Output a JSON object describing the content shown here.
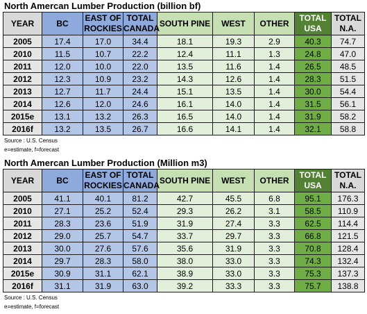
{
  "tables": [
    {
      "title": "North Amercan Lumber Production (billion bf)",
      "headers": {
        "year": "YEAR",
        "bc": "BC",
        "east_rockies_l1": "EAST OF",
        "east_rockies_l2": "ROCKIES",
        "total_canada_l1": "TOTAL",
        "total_canada_l2": "CANADA",
        "south_pine": "SOUTH PINE",
        "west": "WEST",
        "other": "OTHER",
        "total_usa_l1": "TOTAL",
        "total_usa_l2": "USA",
        "total_na_l1": "TOTAL",
        "total_na_l2": "N.A."
      },
      "rows": [
        [
          "2005",
          "17.4",
          "17.0",
          "34.4",
          "18.1",
          "19.3",
          "2.9",
          "40.3",
          "74.7"
        ],
        [
          "2010",
          "11.5",
          "10.7",
          "22.2",
          "12.4",
          "11.1",
          "1.3",
          "24.8",
          "47.0"
        ],
        [
          "2011",
          "12.0",
          "10.0",
          "22.0",
          "13.5",
          "11.6",
          "1.4",
          "26.5",
          "48.5"
        ],
        [
          "2012",
          "12.3",
          "10.9",
          "23.2",
          "14.3",
          "12.6",
          "1.4",
          "28.3",
          "51.5"
        ],
        [
          "2013",
          "12.7",
          "11.7",
          "24.4",
          "15.1",
          "13.5",
          "1.4",
          "30.0",
          "54.4"
        ],
        [
          "2014",
          "12.6",
          "12.0",
          "24.6",
          "16.1",
          "14.0",
          "1.4",
          "31.5",
          "56.1"
        ],
        [
          "2015e",
          "13.1",
          "13.2",
          "26.3",
          "16.5",
          "14.0",
          "1.4",
          "31.9",
          "58.2"
        ],
        [
          "2016f",
          "13.2",
          "13.5",
          "26.7",
          "16.6",
          "14.1",
          "1.4",
          "32.1",
          "58.8"
        ]
      ],
      "source": "Source : U.S. Census",
      "note": "e=estimate, f=forecast"
    },
    {
      "title": "North Amercan Lumber Production (Million m3)",
      "headers": {
        "year": "YEAR",
        "bc": "BC",
        "east_rockies_l1": "EAST OF",
        "east_rockies_l2": "ROCKIES",
        "total_canada_l1": "TOTAL",
        "total_canada_l2": "CANADA",
        "south_pine": "SOUTH PINE",
        "west": "WEST",
        "other": "OTHER",
        "total_usa_l1": "TOTAL",
        "total_usa_l2": "USA",
        "total_na_l1": "TOTAL",
        "total_na_l2": "N.A."
      },
      "rows": [
        [
          "2005",
          "41.1",
          "40.1",
          "81.2",
          "42.7",
          "45.5",
          "6.8",
          "95.1",
          "176.3"
        ],
        [
          "2010",
          "27.1",
          "25.2",
          "52.4",
          "29.3",
          "26.2",
          "3.1",
          "58.5",
          "110.9"
        ],
        [
          "2011",
          "28.3",
          "23.6",
          "51.9",
          "31.9",
          "27.4",
          "3.3",
          "62.5",
          "114.4"
        ],
        [
          "2012",
          "29.0",
          "25.7",
          "54.7",
          "33.7",
          "29.7",
          "3.3",
          "66.8",
          "121.5"
        ],
        [
          "2013",
          "30.0",
          "27.6",
          "57.6",
          "35.6",
          "31.9",
          "3.3",
          "70.8",
          "128.4"
        ],
        [
          "2014",
          "29.7",
          "28.3",
          "58.0",
          "38.0",
          "33.0",
          "3.3",
          "74.3",
          "132.4"
        ],
        [
          "2015e",
          "30.9",
          "31.1",
          "62.1",
          "38.9",
          "33.0",
          "3.3",
          "75.3",
          "137.3"
        ],
        [
          "2016f",
          "31.1",
          "31.9",
          "63.0",
          "39.2",
          "33.3",
          "3.3",
          "75.7",
          "138.8"
        ]
      ],
      "source": "Source : U.S. Census",
      "note": "e=estimate, f=forecast"
    }
  ],
  "colors": {
    "header_grey": "#d9d9d9",
    "canada_header": "#8ea9db",
    "canada_cell": "#b4c6e7",
    "us_region_header": "#c6e0b4",
    "us_region_cell": "#e2efda",
    "total_usa_header": "#548235",
    "total_usa_cell": "#70ad47",
    "total_na_cell": "#e7e6e6"
  }
}
